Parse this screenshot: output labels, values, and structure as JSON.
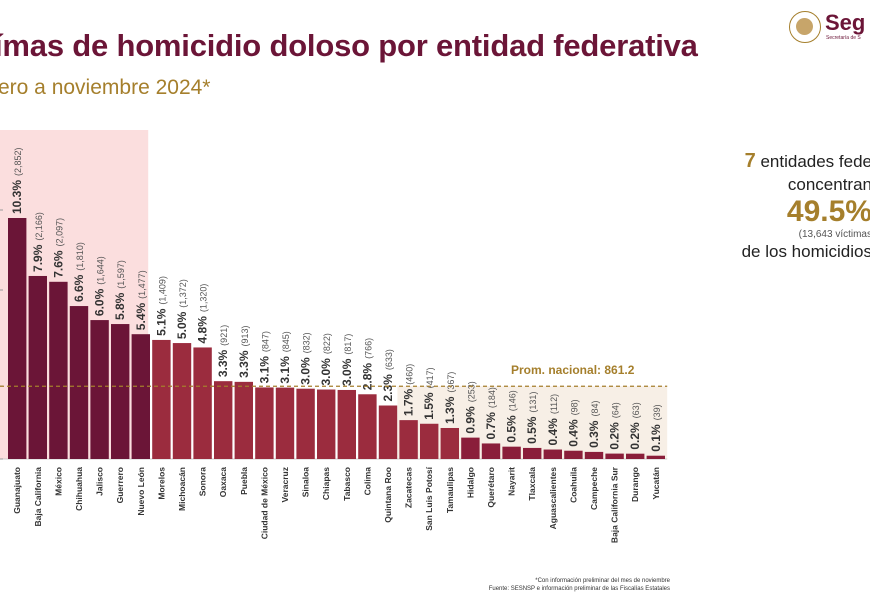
{
  "header": {
    "title": "ímas de homicidio doloso por entidad federativa",
    "subtitle": "ero a noviembre 2024*",
    "logo_text": "Seg",
    "logo_sub": "Secretaría de S"
  },
  "colors": {
    "brand": "#6b1537",
    "gold": "#a57f2c",
    "top_bar": "#6b1537",
    "mid_bar": "#9b2c3e",
    "low_bar": "#8a1e3a",
    "highlight": "#fbdede"
  },
  "side_note": {
    "count": "7",
    "line1_rest": " entidades fede",
    "line2": "concentran",
    "percent": "49.5%",
    "victims": "(13,643  víctimas",
    "line3": "de los homicidios"
  },
  "chart_data": {
    "type": "bar",
    "title": "",
    "categories": [
      "Guanajuato",
      "Baja California",
      "México",
      "Chihuahua",
      "Jalisco",
      "Guerrero",
      "Nuevo León",
      "Morelos",
      "Michoacán",
      "Sonora",
      "Oaxaca",
      "Puebla",
      "Ciudad de México",
      "Veracruz",
      "Sinaloa",
      "Chiapas",
      "Tabasco",
      "Colima",
      "Quintana Roo",
      "Zacatecas",
      "San Luis Potosí",
      "Tamaulipas",
      "Hidalgo",
      "Querétaro",
      "Nayarit",
      "Tlaxcala",
      "Aguascalientes",
      "Coahuila",
      "Campeche",
      "Baja California Sur",
      "Durango",
      "Yucatán"
    ],
    "values": [
      2852,
      2166,
      2097,
      1810,
      1644,
      1597,
      1477,
      1409,
      1372,
      1320,
      921,
      913,
      847,
      845,
      832,
      822,
      817,
      766,
      633,
      460,
      417,
      367,
      253,
      184,
      146,
      131,
      112,
      98,
      84,
      64,
      63,
      39
    ],
    "percent_labels": [
      "10.3%",
      "7.9%",
      "7.6%",
      "6.6%",
      "6.0%",
      "5.8%",
      "5.4%",
      "5.1%",
      "5.0%",
      "4.8%",
      "3.3%",
      "3.3%",
      "3.1%",
      "3.1%",
      "3.0%",
      "3.0%",
      "3.0%",
      "2.8%",
      "2.3%",
      "1.7%",
      "1.5%",
      "1.3%",
      "0.9%",
      "0.7%",
      "0.5%",
      "0.5%",
      "0.4%",
      "0.4%",
      "0.3%",
      "0.2%",
      "0.2%",
      "0.1%"
    ],
    "value_labels": [
      "(2,852)",
      "(2,166)",
      "(2,097)",
      "(1,810)",
      "(1,644)",
      "(1,597)",
      "(1,477)",
      "(1,409)",
      "(1,372)",
      "(1,320)",
      "(921)",
      "(913)",
      "(847)",
      "(845)",
      "(832)",
      "(822)",
      "(817)",
      "(766)",
      "(633)",
      "(460)",
      "(417)",
      "(367)",
      "(253)",
      "(184)",
      "(146)",
      "(131)",
      "(112)",
      "(98)",
      "(84)",
      "(64)",
      "(63)",
      "(39)"
    ],
    "highlight_count": 7,
    "average": 861.2,
    "average_label": "Prom. nacional: 861.2",
    "ylim": [
      0,
      3000
    ]
  },
  "footnote": {
    "line1": "*Con información preliminar del mes de noviembre",
    "line2": "Fuente: SESNSP e información preliminar de las Fiscalías Estatales"
  }
}
